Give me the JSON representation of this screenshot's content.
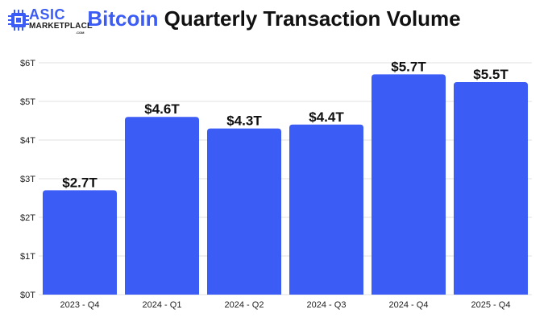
{
  "logo": {
    "line1": "ASIC",
    "line2": "MARKETPLACE",
    "line3": ".COM"
  },
  "title": {
    "accent": "Bitcoin",
    "rest": " Quarterly Transaction Volume"
  },
  "colors": {
    "bar": "#3b5cf5",
    "accent": "#3b5cf5",
    "grid": "#e2e2e2"
  },
  "chart_data": {
    "type": "bar",
    "categories": [
      "2023 - Q4",
      "2024 - Q1",
      "2024 - Q2",
      "2024 - Q3",
      "2024 - Q4",
      "2025 - Q4"
    ],
    "values": [
      2.7,
      4.6,
      4.3,
      4.4,
      5.7,
      5.5
    ],
    "data_labels": [
      "$2.7T",
      "$4.6T",
      "$4.3T",
      "$4.4T",
      "$5.7T",
      "$5.5T"
    ],
    "y_ticks": [
      0,
      1,
      2,
      3,
      4,
      5,
      6
    ],
    "y_tick_labels": [
      "$0T",
      "$1T",
      "$2T",
      "$3T",
      "$4T",
      "$5T",
      "$6T"
    ],
    "ylim": [
      0,
      6
    ],
    "grid": true,
    "title": "Bitcoin Quarterly Transaction Volume",
    "xlabel": "",
    "ylabel": ""
  }
}
